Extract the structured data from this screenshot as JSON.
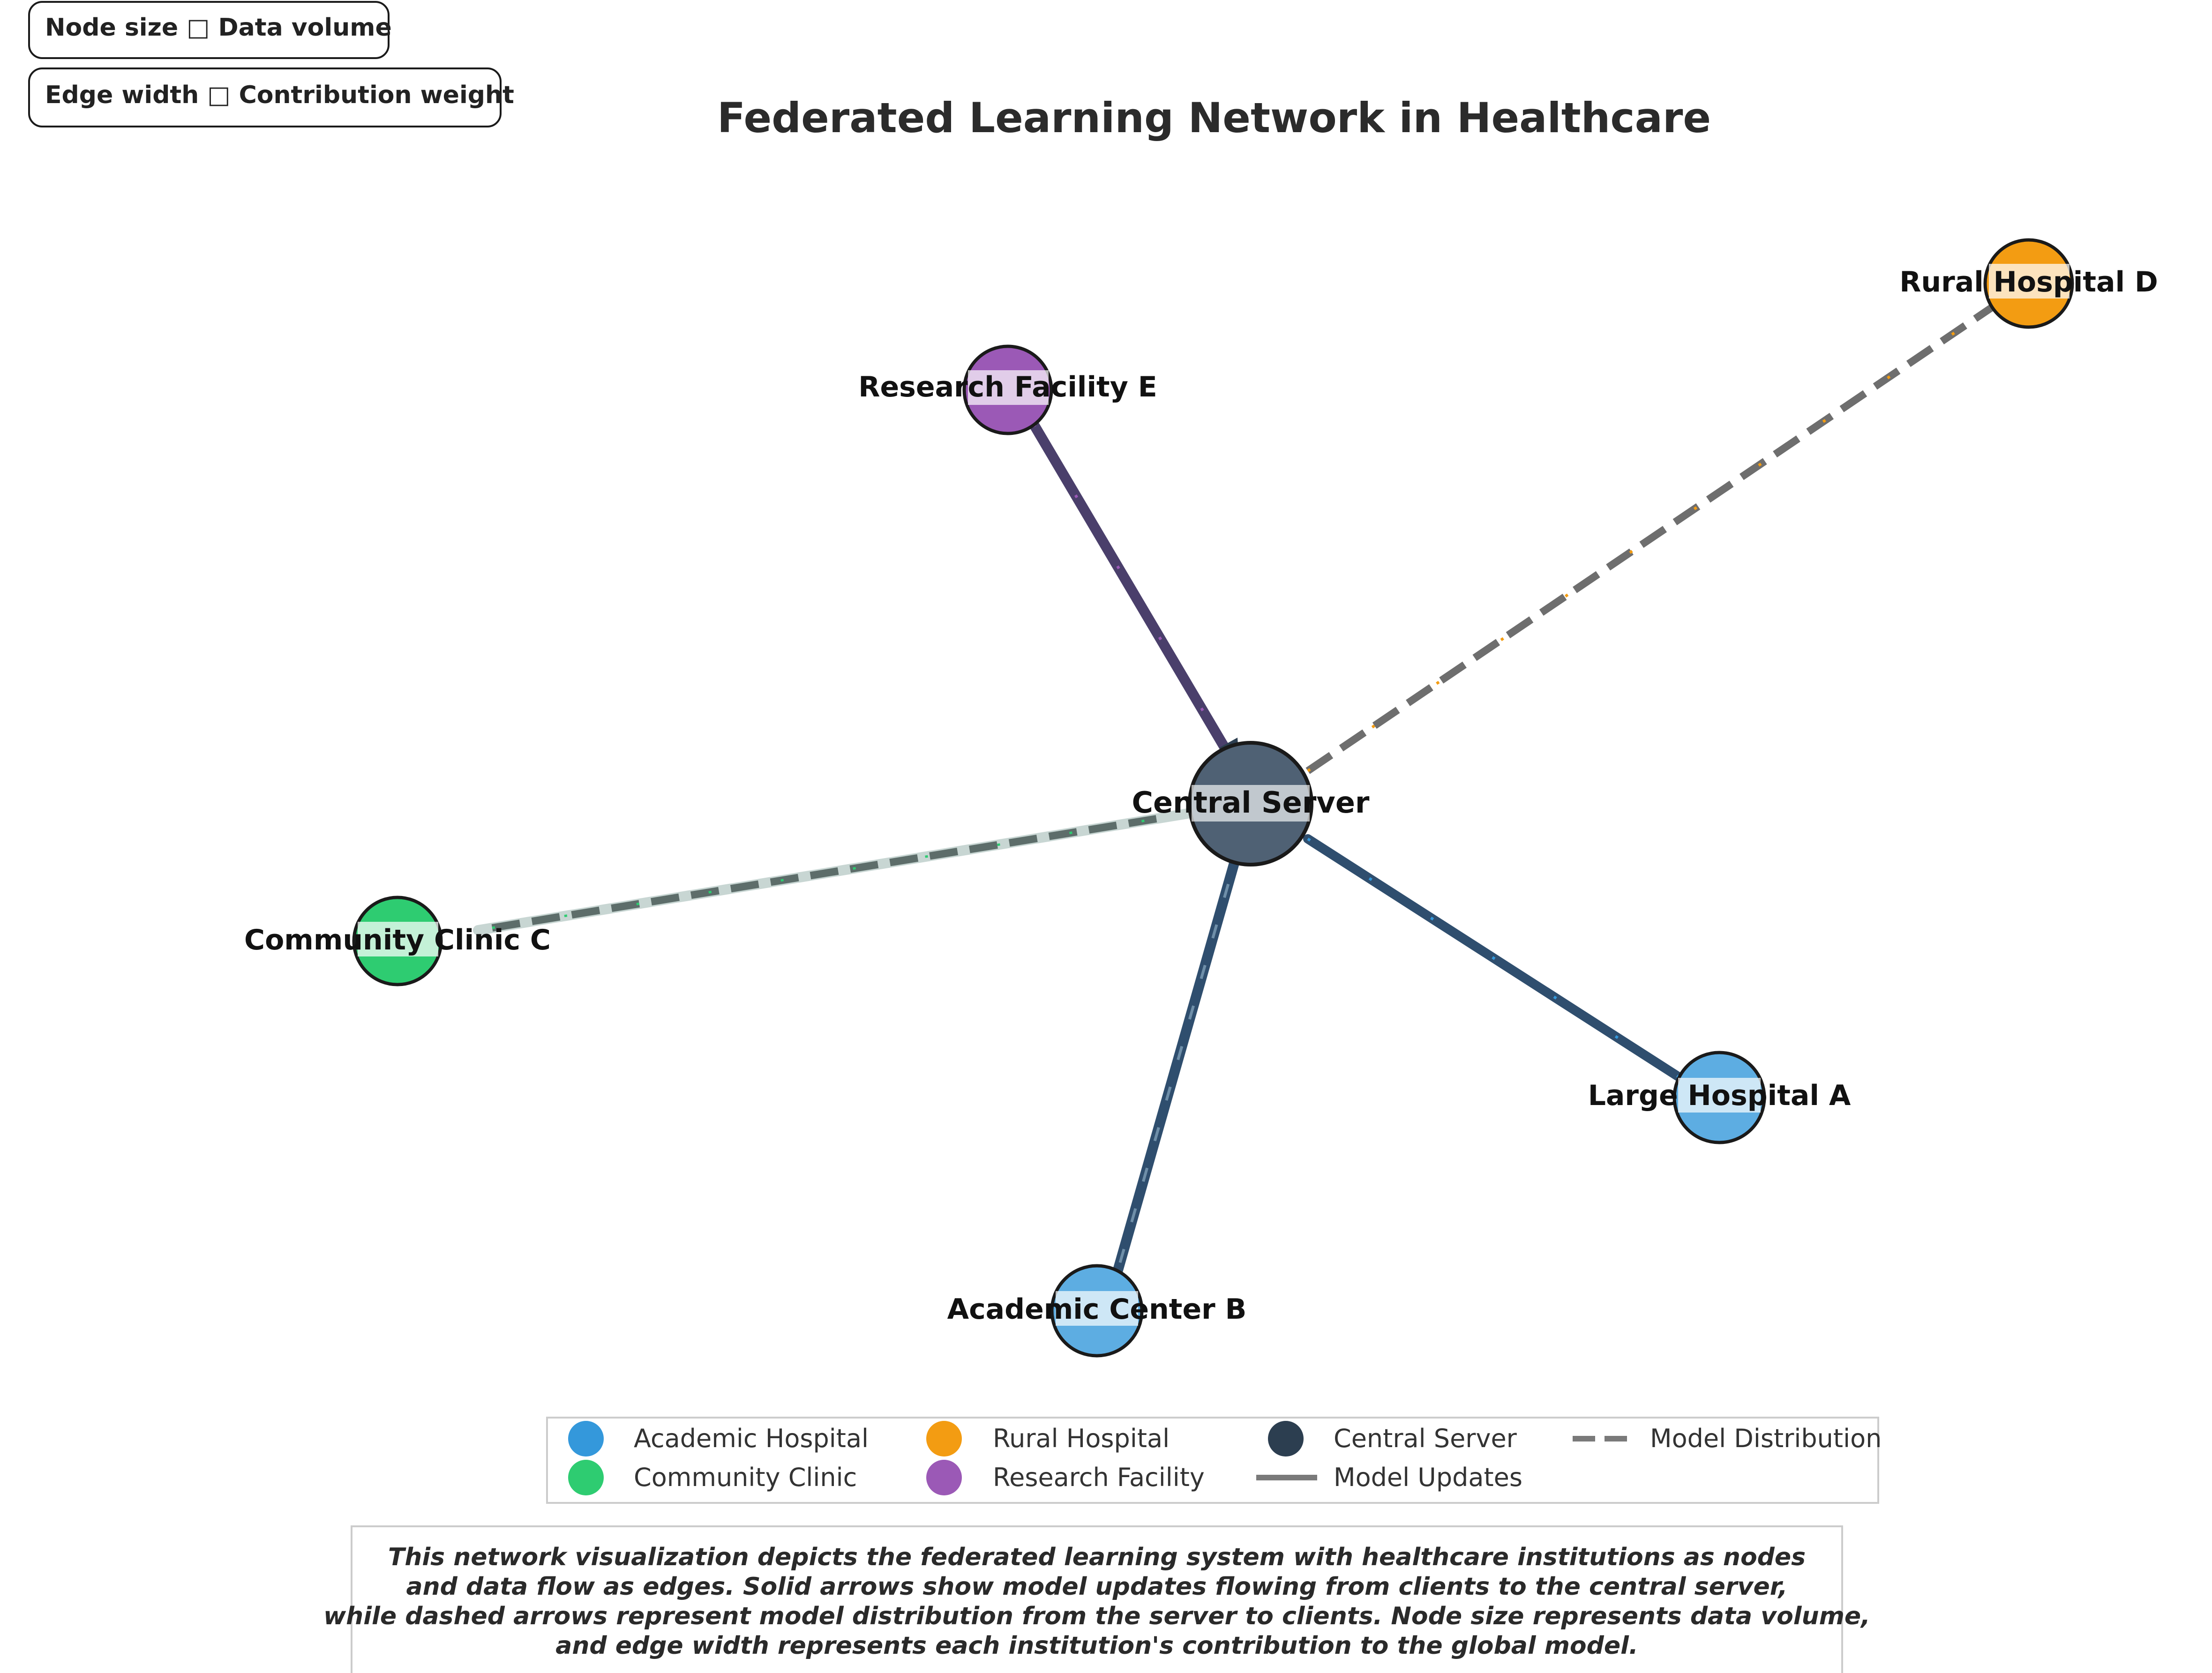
{
  "title": "Federated Learning Network in Healthcare",
  "badges": {
    "node_size": "Node size □ Data volume",
    "edge_width": "Edge width □ Contribution weight"
  },
  "nodes": {
    "central": {
      "label": "Central Server",
      "type": "Central Server",
      "color": "#2c3e50"
    },
    "hospital_a": {
      "label": "Large Hospital A",
      "type": "Academic Hospital",
      "color": "#3498db"
    },
    "center_b": {
      "label": "Academic Center B",
      "type": "Academic Hospital",
      "color": "#3498db"
    },
    "clinic_c": {
      "label": "Community Clinic C",
      "type": "Community Clinic",
      "color": "#2ecc71"
    },
    "hospital_d": {
      "label": "Rural Hospital D",
      "type": "Rural Hospital",
      "color": "#f39c12"
    },
    "facility_e": {
      "label": "Research Facility E",
      "type": "Research Facility",
      "color": "#9b59b6"
    }
  },
  "legend": {
    "academic_hospital": "Academic Hospital",
    "community_clinic": "Community Clinic",
    "rural_hospital": "Rural Hospital",
    "research_facility": "Research Facility",
    "central_server": "Central Server",
    "model_updates": "Model Updates",
    "model_distribution": "Model Distribution"
  },
  "caption": {
    "line1": "This network visualization depicts the federated learning system with healthcare institutions as nodes",
    "line2": "and data flow as edges. Solid arrows show model updates flowing from clients to the central server,",
    "line3": "while dashed arrows represent model distribution from the server to clients. Node size represents data volume,",
    "line4": "and edge width represents each institution's contribution to the global model."
  },
  "colors": {
    "academic": "#3498db",
    "community": "#2ecc71",
    "rural": "#f39c12",
    "research": "#9b59b6",
    "central": "#2c3e50",
    "edge_gray": "#707070"
  }
}
